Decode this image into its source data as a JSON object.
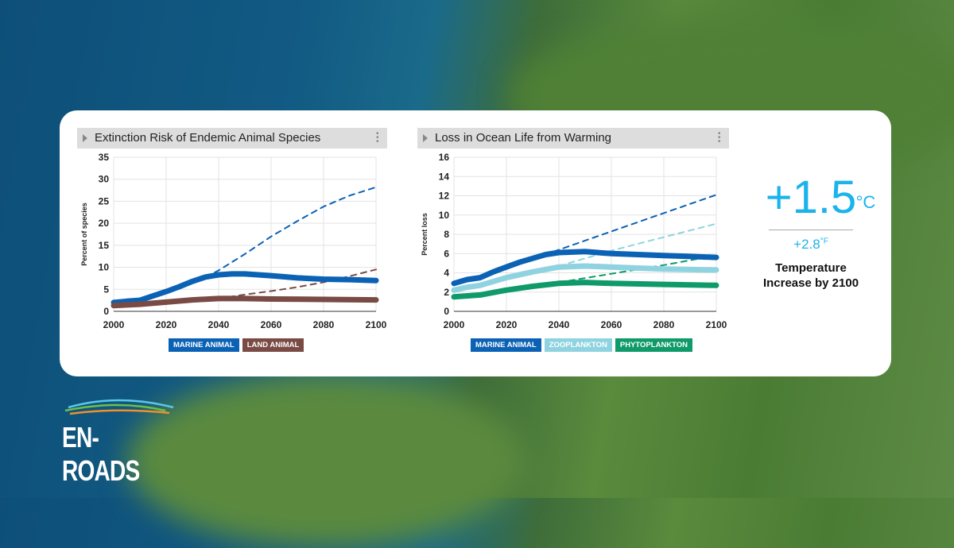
{
  "charts": [
    {
      "title": "Extinction Risk of Endemic Animal Species",
      "ylabel": "Percent of species",
      "chart_data": {
        "type": "line",
        "title": "Extinction Risk of Endemic Animal Species",
        "xlabel": "",
        "ylabel": "Percent of species",
        "xlim": [
          2000,
          2100
        ],
        "ylim": [
          0,
          35
        ],
        "xticks": [
          2000,
          2020,
          2040,
          2060,
          2080,
          2100
        ],
        "yticks": [
          0,
          5,
          10,
          15,
          20,
          25,
          30,
          35
        ],
        "grid": true,
        "legend": "bottom",
        "series": [
          {
            "name": "MARINE ANIMAL",
            "color": "#0b62b5",
            "style": "solid",
            "x": [
              2000,
              2005,
              2010,
              2015,
              2020,
              2025,
              2030,
              2035,
              2040,
              2045,
              2050,
              2060,
              2070,
              2080,
              2090,
              2100
            ],
            "y": [
              2,
              2.3,
              2.5,
              3.5,
              4.5,
              5.6,
              6.8,
              7.8,
              8.3,
              8.5,
              8.5,
              8.1,
              7.6,
              7.3,
              7.2,
              7.0
            ]
          },
          {
            "name": "MARINE ANIMAL",
            "color": "#0b62b5",
            "style": "dashed",
            "x": [
              2035,
              2040,
              2050,
              2060,
              2070,
              2080,
              2090,
              2100
            ],
            "y": [
              7.8,
              9.3,
              13,
              17,
              20.5,
              23.8,
              26.3,
              28.2
            ]
          },
          {
            "name": "LAND ANIMAL",
            "color": "#7a4a44",
            "style": "solid",
            "x": [
              2000,
              2010,
              2020,
              2030,
              2040,
              2050,
              2060,
              2080,
              2100
            ],
            "y": [
              1.3,
              1.6,
              2.1,
              2.6,
              2.9,
              2.9,
              2.8,
              2.7,
              2.6
            ]
          },
          {
            "name": "LAND ANIMAL",
            "color": "#7a4a44",
            "style": "dashed",
            "x": [
              2040,
              2050,
              2060,
              2070,
              2080,
              2090,
              2100
            ],
            "y": [
              2.9,
              3.8,
              4.6,
              5.5,
              6.6,
              8,
              9.5
            ]
          }
        ]
      },
      "legend": [
        {
          "label": "MARINE ANIMAL",
          "color": "#0b62b5"
        },
        {
          "label": "LAND ANIMAL",
          "color": "#7a4a44"
        }
      ]
    },
    {
      "title": "Loss in Ocean Life from Warming",
      "ylabel": "Percent loss",
      "chart_data": {
        "type": "line",
        "title": "Loss in Ocean Life from Warming",
        "xlabel": "",
        "ylabel": "Percent loss",
        "xlim": [
          2000,
          2100
        ],
        "ylim": [
          0,
          16
        ],
        "xticks": [
          2000,
          2020,
          2040,
          2060,
          2080,
          2100
        ],
        "yticks": [
          0,
          2,
          4,
          6,
          8,
          10,
          12,
          14,
          16
        ],
        "grid": true,
        "legend": "bottom",
        "series": [
          {
            "name": "MARINE ANIMAL",
            "color": "#0b62b5",
            "style": "solid",
            "x": [
              2000,
              2005,
              2010,
              2015,
              2020,
              2025,
              2030,
              2035,
              2040,
              2050,
              2060,
              2070,
              2080,
              2090,
              2100
            ],
            "y": [
              2.9,
              3.3,
              3.5,
              4.1,
              4.6,
              5.1,
              5.5,
              5.9,
              6.1,
              6.2,
              6.0,
              5.9,
              5.8,
              5.7,
              5.6
            ]
          },
          {
            "name": "MARINE ANIMAL",
            "color": "#0b62b5",
            "style": "dashed",
            "x": [
              2038,
              2060,
              2080,
              2100
            ],
            "y": [
              6.2,
              8.3,
              10.2,
              12.1
            ]
          },
          {
            "name": "ZOOPLANKTON",
            "color": "#8fd3e0",
            "style": "solid",
            "x": [
              2000,
              2005,
              2010,
              2020,
              2030,
              2040,
              2050,
              2060,
              2080,
              2100
            ],
            "y": [
              2.2,
              2.5,
              2.7,
              3.5,
              4.1,
              4.6,
              4.7,
              4.6,
              4.4,
              4.3
            ]
          },
          {
            "name": "ZOOPLANKTON",
            "color": "#8fd3e0",
            "style": "dashed",
            "x": [
              2040,
              2060,
              2080,
              2100
            ],
            "y": [
              4.7,
              6.3,
              7.7,
              9.1
            ]
          },
          {
            "name": "PHYTOPLANKTON",
            "color": "#0f9a6a",
            "style": "solid",
            "x": [
              2000,
              2010,
              2020,
              2030,
              2040,
              2050,
              2060,
              2080,
              2100
            ],
            "y": [
              1.5,
              1.7,
              2.2,
              2.6,
              2.9,
              3.0,
              2.9,
              2.8,
              2.7
            ]
          },
          {
            "name": "PHYTOPLANKTON",
            "color": "#0f9a6a",
            "style": "dashed",
            "x": [
              2040,
              2060,
              2080,
              2100
            ],
            "y": [
              3.0,
              3.9,
              4.8,
              5.8
            ]
          }
        ]
      },
      "legend": [
        {
          "label": "MARINE ANIMAL",
          "color": "#0b62b5"
        },
        {
          "label": "ZOOPLANKTON",
          "color": "#8fd3e0"
        },
        {
          "label": "PHYTOPLANKTON",
          "color": "#0f9a6a"
        }
      ]
    }
  ],
  "temperature": {
    "celsius": "+1.5",
    "c_unit": "°C",
    "fahrenheit": "+2.8",
    "f_unit": "°F",
    "label": "Temperature Increase by 2100"
  },
  "logo": {
    "text": "EN-ROADS"
  }
}
